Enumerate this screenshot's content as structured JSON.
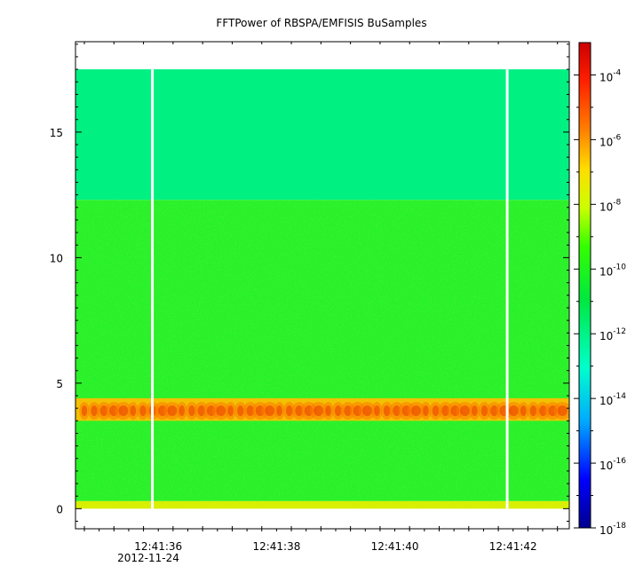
{
  "chart_data": {
    "type": "heatmap",
    "title": "FFTPower of RBSPA/EMFISIS  BuSamples",
    "xlabel": "",
    "ylabel": "",
    "x_ticks": [
      "12:41:36",
      "12:41:38",
      "12:41:40",
      "12:41:42"
    ],
    "x_tick_seconds": [
      36,
      38,
      40,
      42
    ],
    "x_date_label": "2012-11-24",
    "xlim_seconds": [
      34.6,
      42.95
    ],
    "y_ticks": [
      0,
      5,
      10,
      15
    ],
    "ylim": [
      -0.8,
      18.6
    ],
    "data_top": 17.5,
    "colorbar": {
      "scale": "log",
      "range": [
        1e-18,
        0.001
      ],
      "ticks": [
        {
          "base": "10",
          "exp": "-4",
          "value": 0.0001
        },
        {
          "base": "10",
          "exp": "-6",
          "value": 1e-06
        },
        {
          "base": "10",
          "exp": "-8",
          "value": 1e-08
        },
        {
          "base": "10",
          "exp": "-10",
          "value": 1e-10
        },
        {
          "base": "10",
          "exp": "-12",
          "value": 1e-12
        },
        {
          "base": "10",
          "exp": "-14",
          "value": 1e-14
        },
        {
          "base": "10",
          "exp": "-16",
          "value": 1e-16
        },
        {
          "base": "10",
          "exp": "-18",
          "value": 1e-18
        }
      ],
      "colors": [
        "#00008f",
        "#0000ff",
        "#00aaff",
        "#00ffcc",
        "#00e840",
        "#33ff00",
        "#ccff00",
        "#ffdd00",
        "#ff8000",
        "#ff2000",
        "#cc0000"
      ]
    },
    "bands": [
      {
        "y_range": [
          12.3,
          17.5
        ],
        "power": 1e-12,
        "color": "#00f082"
      },
      {
        "y_range": [
          0.3,
          12.3
        ],
        "power": 1e-10,
        "color": "#27f12a"
      },
      {
        "y_range": [
          3.5,
          4.4
        ],
        "power": 1e-07,
        "color": "#f2c000"
      },
      {
        "y_range": [
          0.0,
          0.3
        ],
        "power": 1e-08,
        "color": "#d8ef00"
      }
    ],
    "data_gaps_seconds": [
      35.9,
      41.9
    ]
  }
}
